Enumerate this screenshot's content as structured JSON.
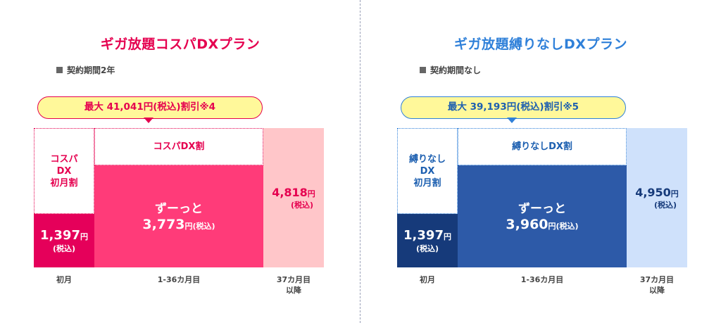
{
  "left": {
    "title": "ギガ放題コスパDXプラン",
    "contract": "契約期間2年",
    "bubble": "最大 41,041円(税込)割引※4",
    "first_discount_label": [
      "コスパ",
      "DX",
      "初月割"
    ],
    "discount_label": "コスパDX割",
    "first_month_price": "1,397",
    "main_text": "ずーっと",
    "main_price": "3,773",
    "after_price": "4,818",
    "yen": "円",
    "tax": "(税込)",
    "months": [
      "初月",
      "1-36カ月目",
      "37カ月目",
      "以降"
    ],
    "colors": {
      "accent": "#e5004f",
      "main": "#ff3b79",
      "after": "#ffc6c9"
    }
  },
  "right": {
    "title": "ギガ放題縛りなしDXプラン",
    "contract": "契約期間なし",
    "bubble": "最大 39,193円(税込)割引※5",
    "first_discount_label": [
      "縛りなし",
      "DX",
      "初月割"
    ],
    "discount_label": "縛りなしDX割",
    "first_month_price": "1,397",
    "main_text": "ずーっと",
    "main_price": "3,960",
    "after_price": "4,950",
    "yen": "円",
    "tax": "(税込)",
    "months": [
      "初月",
      "1-36カ月目",
      "37カ月目",
      "以降"
    ],
    "colors": {
      "accent": "#163a7a",
      "main": "#2d5aa8",
      "after": "#cfe1fb"
    }
  }
}
